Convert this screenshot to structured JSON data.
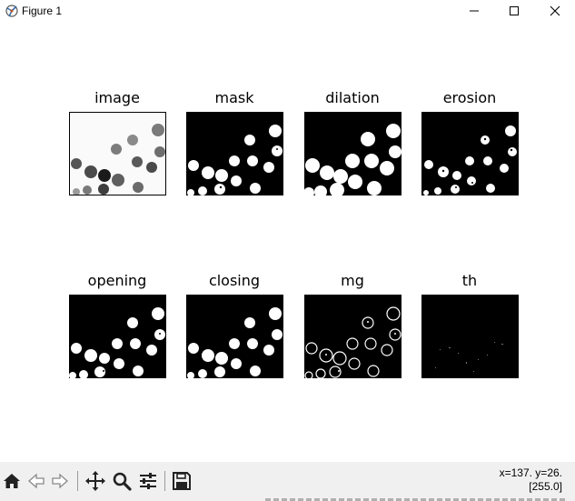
{
  "window": {
    "title": "Figure 1",
    "icon": "matplotlib-figure-icon",
    "controls": [
      "minimize-icon",
      "maximize-icon",
      "close-icon"
    ]
  },
  "figure": {
    "panels": [
      {
        "title": "image",
        "style": "grayscale"
      },
      {
        "title": "mask",
        "style": "binary"
      },
      {
        "title": "dilation",
        "style": "binary"
      },
      {
        "title": "erosion",
        "style": "binary"
      },
      {
        "title": "opening",
        "style": "binary"
      },
      {
        "title": "closing",
        "style": "binary"
      },
      {
        "title": "mg",
        "style": "outline"
      },
      {
        "title": "th",
        "style": "sparse"
      }
    ]
  },
  "toolbar": {
    "tools": [
      "home-icon",
      "back-icon",
      "forward-icon",
      "pan-icon",
      "zoom-icon",
      "configure-subplots-icon",
      "save-icon"
    ],
    "coords": "x=137. y=26.",
    "pixel_value": "[255.0]"
  }
}
